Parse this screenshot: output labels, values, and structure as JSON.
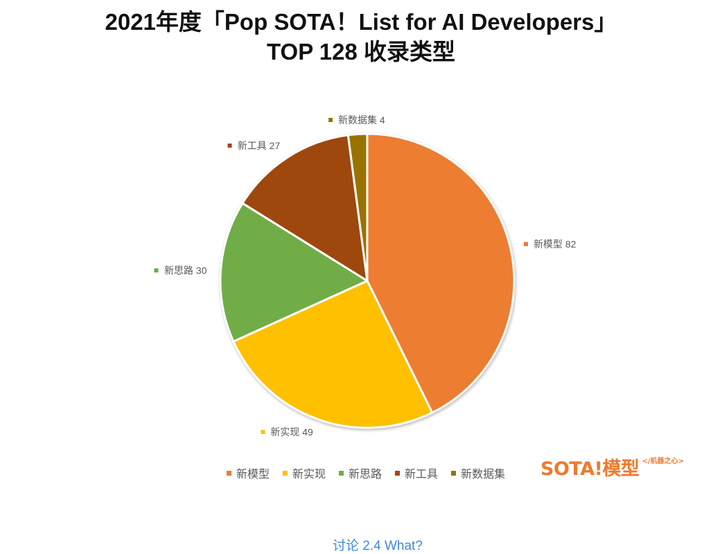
{
  "chart_data": {
    "type": "pie",
    "title_lines": [
      "2021年度「Pop SOTA！List for AI Developers」",
      "TOP 128 收录类型"
    ],
    "categories": [
      "新模型",
      "新实现",
      "新思路",
      "新工具",
      "新数据集"
    ],
    "values": [
      82,
      49,
      30,
      27,
      4
    ],
    "colors": [
      "#ED7D31",
      "#FFC000",
      "#70AD47",
      "#9E480E",
      "#997300"
    ],
    "start": "top",
    "direction": "clockwise",
    "data_labels": "outside",
    "legend": "bottom"
  },
  "watermark": {
    "logo": "SOTA!模型",
    "tag": "</机器之心>"
  },
  "caption": "讨论 2.4 What?"
}
